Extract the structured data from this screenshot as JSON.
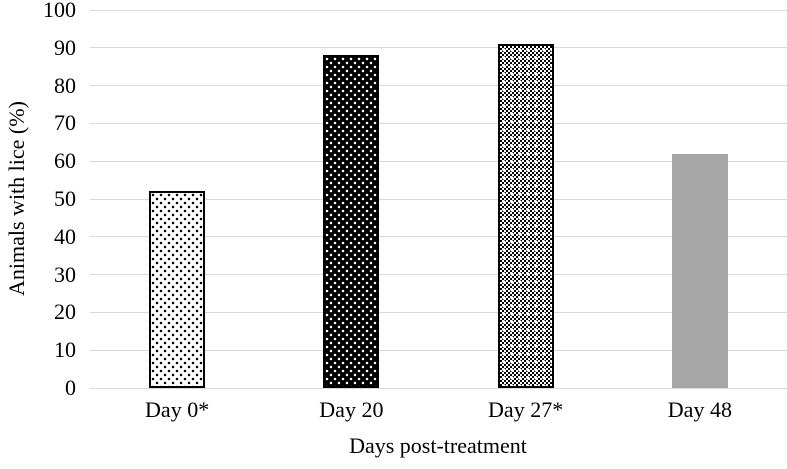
{
  "chart_data": {
    "type": "bar",
    "title": "",
    "xlabel": "Days post-treatment",
    "ylabel": "Animals with lice (%)",
    "categories": [
      "Day 0*",
      "Day 20",
      "Day 27*",
      "Day 48"
    ],
    "values": [
      52,
      88,
      91,
      62
    ],
    "bar_patterns": [
      "black-dots-on-white",
      "white-dots-on-black",
      "checker-trellis",
      "solid-gray"
    ],
    "yticks": [
      0,
      10,
      20,
      30,
      40,
      50,
      60,
      70,
      80,
      90,
      100
    ],
    "ylim": [
      0,
      100
    ],
    "grid": "horizontal-only",
    "legend": "none",
    "colors": {
      "gridline": "#d9d9d9",
      "axis_line": "#d9d9d9",
      "text": "#000000",
      "bar_border": "#000000",
      "solid_bar_fill": "#a6a6a6",
      "background": "#ffffff"
    }
  }
}
